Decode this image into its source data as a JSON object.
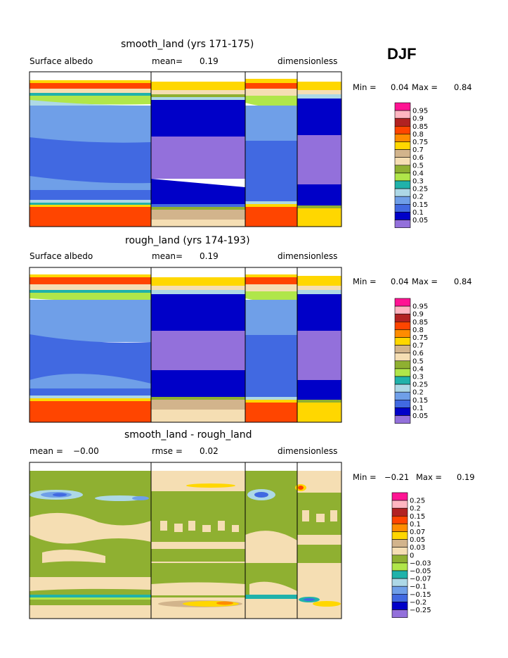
{
  "season": "DJF",
  "colors": {
    "c_pink_hot": "#ff1493",
    "c_pink_light": "#ffb6c1",
    "c_red_dark": "#b22222",
    "c_red": "#ff4500",
    "c_orange": "#ff8c00",
    "c_yellow": "#ffd700",
    "c_tan": "#d2b48c",
    "c_wheat": "#f5deb3",
    "c_olive": "#8fb031",
    "c_lime": "#b0e64a",
    "c_teal": "#20b2aa",
    "c_lightblue": "#add8e6",
    "c_cornflower": "#6f9fe8",
    "c_royal": "#4169e1",
    "c_navy": "#0000c8",
    "c_lavender": "#9370db"
  },
  "chart_data": [
    {
      "type": "heatmap",
      "title": "smooth_land (yrs 171-175)",
      "variable": "Surface albedo",
      "mean_label": "mean=",
      "mean": "0.19",
      "units": "dimensionless",
      "min_label": "Min =",
      "min": "0.04",
      "max_label": "Max =",
      "max": "0.84",
      "levels": [
        "0.95",
        "0.9",
        "0.85",
        "0.8",
        "0.75",
        "0.7",
        "0.6",
        "0.5",
        "0.4",
        "0.3",
        "0.25",
        "0.2",
        "0.15",
        "0.1",
        "0.05"
      ]
    },
    {
      "type": "heatmap",
      "title": "rough_land (yrs 174-193)",
      "variable": "Surface albedo",
      "mean_label": "mean=",
      "mean": "0.19",
      "units": "dimensionless",
      "min_label": "Min =",
      "min": "0.04",
      "max_label": "Max =",
      "max": "0.84",
      "levels": [
        "0.95",
        "0.9",
        "0.85",
        "0.8",
        "0.75",
        "0.7",
        "0.6",
        "0.5",
        "0.4",
        "0.3",
        "0.25",
        "0.2",
        "0.15",
        "0.1",
        "0.05"
      ]
    },
    {
      "type": "heatmap",
      "title": "smooth_land - rough_land",
      "mean_label": "mean =",
      "mean": "−0.00",
      "rmse_label": "rmse =",
      "rmse": "0.02",
      "units": "dimensionless",
      "min_label": "Min =",
      "min": "−0.21",
      "max_label": "Max =",
      "max": "0.19",
      "levels": [
        "0.25",
        "0.2",
        "0.15",
        "0.1",
        "0.07",
        "0.05",
        "0.03",
        "0",
        "−0.03",
        "−0.05",
        "−0.07",
        "−0.1",
        "−0.15",
        "−0.2",
        "−0.25"
      ]
    }
  ]
}
